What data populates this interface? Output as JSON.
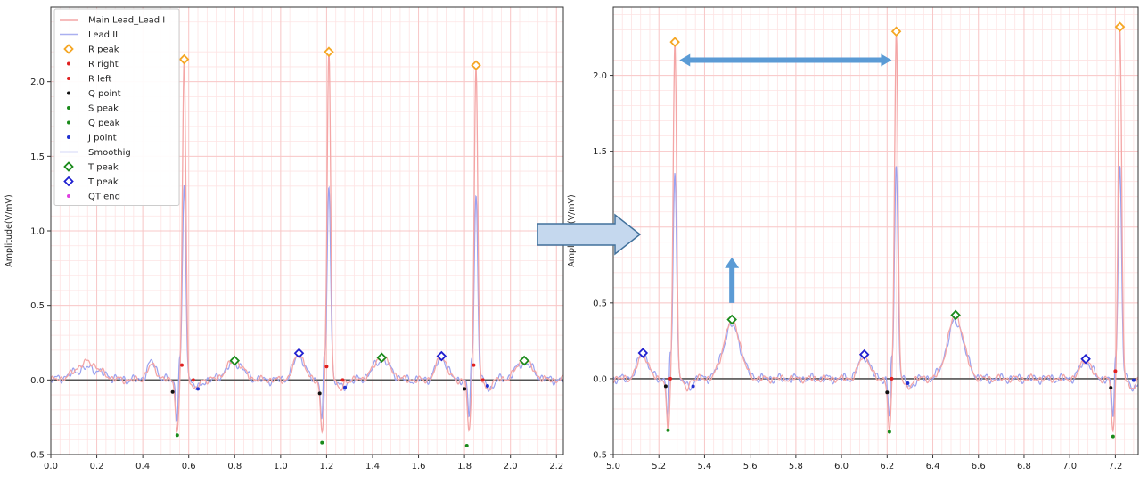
{
  "chart_data": [
    {
      "type": "line",
      "ylabel": "Amplitude(V/mV)",
      "xlim": [
        0.0,
        2.23
      ],
      "ylim": [
        -0.5,
        2.5
      ],
      "x_ticks": [
        "0.0",
        "0.2",
        "0.4",
        "0.6",
        "0.8",
        "1.0",
        "1.2",
        "1.4",
        "1.6",
        "1.8",
        "2.0",
        "2.2"
      ],
      "y_ticks": [
        "-0.5",
        "0.0",
        "0.5",
        "1.0",
        "1.5",
        "2.0"
      ],
      "grid": true,
      "legend_position": "top-left",
      "legend": [
        {
          "label": "Main Lead_Lead I",
          "kind": "line",
          "color": "#f4a6a6"
        },
        {
          "label": "Lead II",
          "kind": "line",
          "color": "#aab0f0"
        },
        {
          "label": "R peak",
          "kind": "diamond",
          "color": "#f5a623"
        },
        {
          "label": "R right",
          "kind": "dot",
          "color": "#e02020"
        },
        {
          "label": "R left",
          "kind": "dot",
          "color": "#e02020"
        },
        {
          "label": "Q point",
          "kind": "dot",
          "color": "#111111"
        },
        {
          "label": "S peak",
          "kind": "dot",
          "color": "#1a8a1a"
        },
        {
          "label": "Q peak",
          "kind": "dot",
          "color": "#1a8a1a"
        },
        {
          "label": "J point",
          "kind": "dot",
          "color": "#2030d0"
        },
        {
          "label": "Smoothig",
          "kind": "line",
          "color": "#aab0f0"
        },
        {
          "label": "T peak",
          "kind": "diamond",
          "color": "#1a8a1a"
        },
        {
          "label": "T peak",
          "kind": "diamond",
          "color": "#2020d0"
        },
        {
          "label": "QT end",
          "kind": "dot",
          "color": "#e040e0"
        }
      ],
      "beats": [
        {
          "r": 0.58,
          "r_amp": 2.15,
          "lead2_r": 1.28
        },
        {
          "r": 1.21,
          "r_amp": 2.2,
          "lead2_r": 1.3
        },
        {
          "r": 1.85,
          "r_amp": 2.11,
          "lead2_r": 1.24
        }
      ],
      "markers": {
        "r_peak": [
          [
            0.58,
            2.15
          ],
          [
            1.21,
            2.2
          ],
          [
            1.85,
            2.11
          ]
        ],
        "r_right": [
          [
            0.62,
            0.0
          ],
          [
            1.27,
            0.0
          ],
          [
            1.88,
            0.0
          ]
        ],
        "r_left": [
          [
            0.57,
            0.1
          ],
          [
            1.2,
            0.09
          ],
          [
            1.84,
            0.1
          ]
        ],
        "q_point": [
          [
            0.53,
            -0.08
          ],
          [
            1.17,
            -0.09
          ],
          [
            1.8,
            -0.06
          ]
        ],
        "s_peak": [
          [
            0.55,
            -0.37
          ],
          [
            1.18,
            -0.42
          ],
          [
            1.81,
            -0.44
          ]
        ],
        "j_point": [
          [
            0.64,
            -0.06
          ],
          [
            1.28,
            -0.05
          ],
          [
            1.9,
            -0.04
          ]
        ],
        "t_peak_green": [
          [
            0.8,
            0.13
          ],
          [
            1.44,
            0.15
          ],
          [
            2.06,
            0.13
          ]
        ],
        "t_peak_blue": [
          [
            1.08,
            0.18
          ],
          [
            1.7,
            0.16
          ]
        ]
      }
    },
    {
      "type": "line",
      "ylabel": "Amplitude(V/mV)",
      "xlim": [
        5.0,
        7.3
      ],
      "ylim": [
        -0.5,
        2.45
      ],
      "x_ticks": [
        "5.0",
        "5.2",
        "5.4",
        "5.6",
        "5.8",
        "6.0",
        "6.2",
        "6.4",
        "6.6",
        "6.8",
        "7.0",
        "7.2"
      ],
      "y_ticks": [
        "-0.5",
        "0.0",
        "0.5",
        "1.0",
        "1.5",
        "2.0"
      ],
      "grid": true,
      "beats": [
        {
          "r": 5.27,
          "r_amp": 2.22,
          "lead2_r": 1.38
        },
        {
          "r": 6.24,
          "r_amp": 2.29,
          "lead2_r": 1.41
        },
        {
          "r": 7.22,
          "r_amp": 2.32,
          "lead2_r": 1.41
        }
      ],
      "markers": {
        "r_peak": [
          [
            5.27,
            2.22
          ],
          [
            6.24,
            2.29
          ],
          [
            7.22,
            2.32
          ]
        ],
        "r_left": [
          [
            5.25,
            0.0
          ],
          [
            6.22,
            0.0
          ],
          [
            7.2,
            0.05
          ]
        ],
        "q_point": [
          [
            5.23,
            -0.05
          ],
          [
            6.2,
            -0.09
          ],
          [
            7.18,
            -0.06
          ]
        ],
        "s_peak": [
          [
            5.24,
            -0.34
          ],
          [
            6.21,
            -0.35
          ],
          [
            7.19,
            -0.38
          ]
        ],
        "j_point": [
          [
            5.35,
            -0.05
          ],
          [
            6.29,
            -0.03
          ],
          [
            7.28,
            -0.01
          ]
        ],
        "t_peak_green": [
          [
            5.52,
            0.39
          ],
          [
            6.5,
            0.42
          ]
        ],
        "t_peak_blue": [
          [
            5.13,
            0.17
          ],
          [
            6.1,
            0.16
          ],
          [
            7.07,
            0.13
          ]
        ]
      },
      "annotations": {
        "double_arrow": {
          "x_from": 5.29,
          "x_to": 6.22,
          "y": 2.1
        },
        "up_arrow": {
          "x": 5.52,
          "y_from": 0.5,
          "y_to": 0.8
        },
        "connector_arrow": "block arrow between panels"
      }
    }
  ],
  "colors": {
    "main_lead": "#f4a6a6",
    "lead2": "#9aa2f0",
    "grid": "#f8c8c8",
    "axis": "#444444",
    "arrow": "#5b9bd5",
    "block_arrow_fill": "#c5d8ee",
    "block_arrow_stroke": "#41719c"
  }
}
